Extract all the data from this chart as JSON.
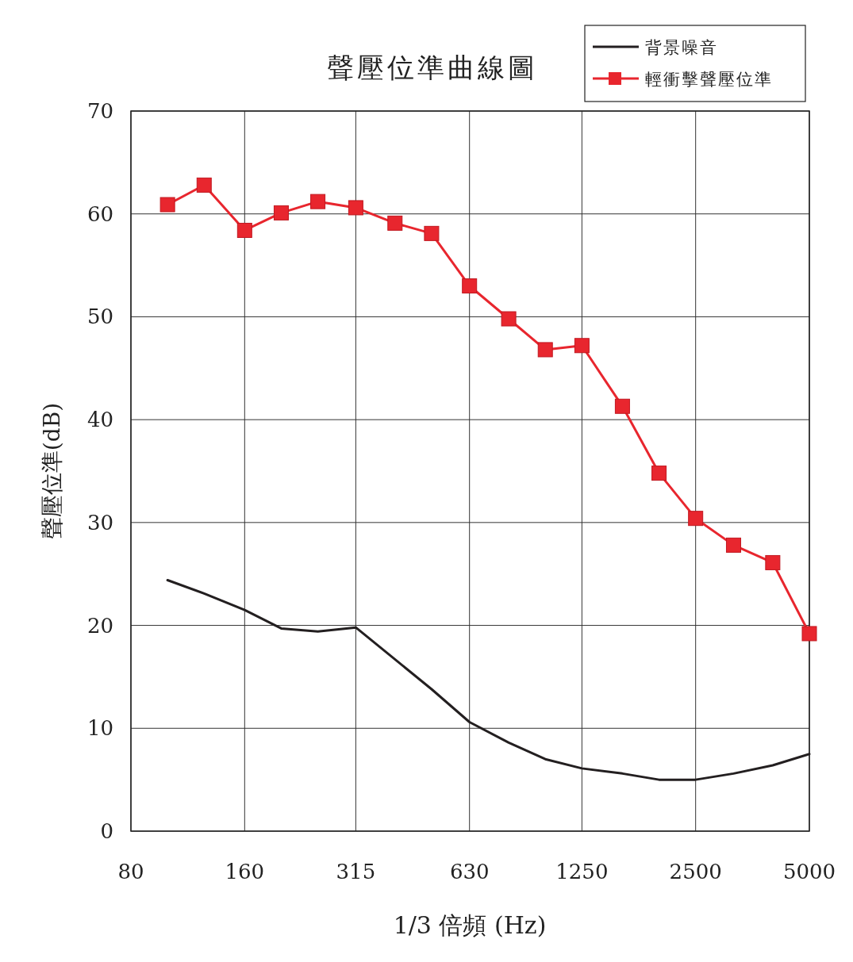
{
  "chart_data": {
    "type": "line",
    "title": "聲壓位準曲線圖",
    "xlabel": "1/3 倍頻 (Hz)",
    "ylabel": "聲壓位準(dB)",
    "x": [
      100,
      125,
      160,
      200,
      250,
      315,
      400,
      500,
      630,
      800,
      1000,
      1250,
      1600,
      2000,
      2500,
      3150,
      4000,
      5000
    ],
    "series": [
      {
        "name": "背景噪音",
        "color": "#231f20",
        "marker": "none",
        "values": [
          24.4,
          23.1,
          21.5,
          19.7,
          19.4,
          19.8,
          16.7,
          13.8,
          10.6,
          8.6,
          7.0,
          6.1,
          5.6,
          5.0,
          5.0,
          5.6,
          6.4,
          7.5
        ]
      },
      {
        "name": "輕衝擊聲壓位準",
        "color": "#e8262e",
        "marker": "square",
        "values": [
          60.9,
          62.8,
          58.4,
          60.1,
          61.2,
          60.6,
          59.1,
          58.1,
          53.0,
          49.8,
          46.8,
          47.2,
          41.3,
          34.8,
          30.4,
          27.8,
          26.1,
          19.2
        ]
      }
    ],
    "xlim": [
      80,
      5000
    ],
    "xticks": [
      80,
      160,
      315,
      630,
      1250,
      2500,
      5000
    ],
    "ylim": [
      0,
      70
    ],
    "yticks": [
      0,
      10,
      20,
      30,
      40,
      50,
      60,
      70
    ],
    "log": "x",
    "grid": true,
    "legend": "top right",
    "line_style": "solid"
  }
}
